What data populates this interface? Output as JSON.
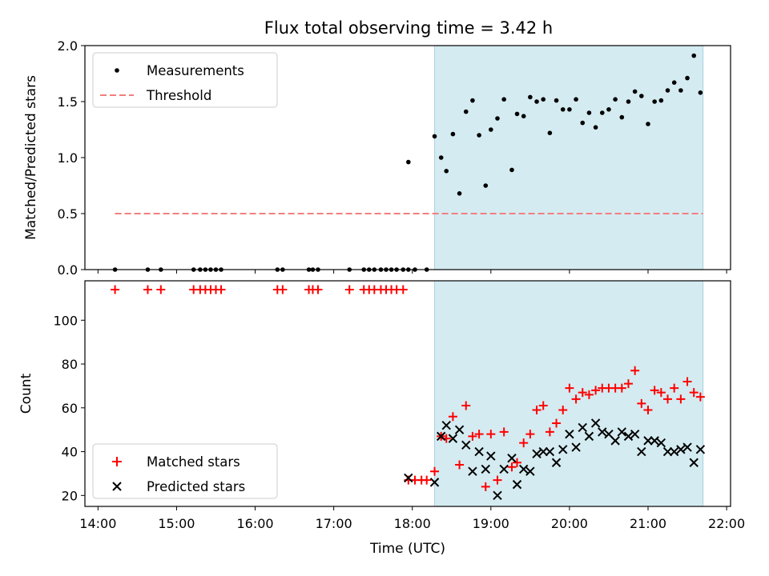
{
  "title": "Flux total observing time = 3.42 h",
  "chart_data": [
    {
      "type": "scatter",
      "ylabel": "Matched/Predicted stars",
      "ylim": [
        0,
        2.0
      ],
      "yticks": [
        "0.0",
        "0.5",
        "1.0",
        "1.5",
        "2.0"
      ],
      "xlim": [
        "13:50",
        "22:03"
      ],
      "legend_position": "top-left",
      "grid": false,
      "observing_window": [
        "18:17",
        "21:42"
      ],
      "observing_window_color": "#d4ebf1",
      "threshold": {
        "name": "Threshold",
        "value": 0.5,
        "from": "14:13",
        "to": "21:42",
        "color": "#f27f7f",
        "style": "dashed"
      },
      "series": [
        {
          "name": "Measurements",
          "marker": "dot",
          "color": "#000000",
          "points": [
            [
              "14:13",
              0
            ],
            [
              "14:38",
              0
            ],
            [
              "14:48",
              0
            ],
            [
              "15:13",
              0
            ],
            [
              "15:18",
              0
            ],
            [
              "15:22",
              0
            ],
            [
              "15:26",
              0
            ],
            [
              "15:30",
              0
            ],
            [
              "15:34",
              0
            ],
            [
              "16:17",
              0
            ],
            [
              "16:21",
              0
            ],
            [
              "16:41",
              0
            ],
            [
              "16:44",
              0
            ],
            [
              "16:48",
              0
            ],
            [
              "17:12",
              0
            ],
            [
              "17:23",
              0
            ],
            [
              "17:27",
              0
            ],
            [
              "17:31",
              0
            ],
            [
              "17:36",
              0
            ],
            [
              "17:40",
              0
            ],
            [
              "17:44",
              0
            ],
            [
              "17:48",
              0
            ],
            [
              "17:53",
              0
            ],
            [
              "17:57",
              0
            ],
            [
              "18:02",
              0
            ],
            [
              "18:11",
              0
            ],
            [
              "17:57",
              0.96
            ],
            [
              "18:17",
              1.19
            ],
            [
              "18:22",
              1.0
            ],
            [
              "18:26",
              0.88
            ],
            [
              "18:31",
              1.21
            ],
            [
              "18:36",
              0.68
            ],
            [
              "18:41",
              1.41
            ],
            [
              "18:46",
              1.51
            ],
            [
              "18:51",
              1.2
            ],
            [
              "18:56",
              0.75
            ],
            [
              "19:00",
              1.25
            ],
            [
              "19:05",
              1.35
            ],
            [
              "19:10",
              1.52
            ],
            [
              "19:16",
              0.89
            ],
            [
              "19:20",
              1.39
            ],
            [
              "19:25",
              1.37
            ],
            [
              "19:30",
              1.54
            ],
            [
              "19:35",
              1.5
            ],
            [
              "19:40",
              1.52
            ],
            [
              "19:45",
              1.22
            ],
            [
              "19:50",
              1.51
            ],
            [
              "19:55",
              1.43
            ],
            [
              "20:00",
              1.43
            ],
            [
              "20:05",
              1.52
            ],
            [
              "20:10",
              1.31
            ],
            [
              "20:15",
              1.4
            ],
            [
              "20:20",
              1.27
            ],
            [
              "20:25",
              1.4
            ],
            [
              "20:30",
              1.43
            ],
            [
              "20:35",
              1.52
            ],
            [
              "20:40",
              1.36
            ],
            [
              "20:45",
              1.5
            ],
            [
              "20:50",
              1.59
            ],
            [
              "20:55",
              1.55
            ],
            [
              "21:00",
              1.3
            ],
            [
              "21:05",
              1.5
            ],
            [
              "21:10",
              1.51
            ],
            [
              "21:15",
              1.6
            ],
            [
              "21:20",
              1.67
            ],
            [
              "21:25",
              1.6
            ],
            [
              "21:30",
              1.71
            ],
            [
              "21:35",
              1.91
            ],
            [
              "21:40",
              1.58
            ]
          ]
        }
      ]
    },
    {
      "type": "scatter",
      "xlabel": "Time (UTC)",
      "ylabel": "Count",
      "ylim": [
        15,
        118
      ],
      "yticks": [
        "20",
        "40",
        "60",
        "80",
        "100"
      ],
      "xlim": [
        "13:50",
        "22:03"
      ],
      "xticks": [
        "14:00",
        "15:00",
        "16:00",
        "17:00",
        "18:00",
        "19:00",
        "20:00",
        "21:00",
        "22:00"
      ],
      "legend_position": "bottom-left",
      "grid": false,
      "observing_window": [
        "18:17",
        "21:42"
      ],
      "observing_window_color": "#d4ebf1",
      "series": [
        {
          "name": "Matched stars",
          "marker": "plus",
          "color": "#ff0000",
          "points": [
            [
              "14:13",
              114
            ],
            [
              "14:38",
              114
            ],
            [
              "14:48",
              114
            ],
            [
              "15:13",
              114
            ],
            [
              "15:18",
              114
            ],
            [
              "15:22",
              114
            ],
            [
              "15:26",
              114
            ],
            [
              "15:30",
              114
            ],
            [
              "15:34",
              114
            ],
            [
              "16:17",
              114
            ],
            [
              "16:21",
              114
            ],
            [
              "16:41",
              114
            ],
            [
              "16:44",
              114
            ],
            [
              "16:48",
              114
            ],
            [
              "17:12",
              114
            ],
            [
              "17:23",
              114
            ],
            [
              "17:27",
              114
            ],
            [
              "17:31",
              114
            ],
            [
              "17:36",
              114
            ],
            [
              "17:40",
              114
            ],
            [
              "17:44",
              114
            ],
            [
              "17:48",
              114
            ],
            [
              "17:53",
              114
            ],
            [
              "17:57",
              27
            ],
            [
              "18:02",
              27
            ],
            [
              "18:07",
              27
            ],
            [
              "18:11",
              27
            ],
            [
              "18:17",
              31
            ],
            [
              "18:22",
              47
            ],
            [
              "18:26",
              46
            ],
            [
              "18:31",
              56
            ],
            [
              "18:36",
              34
            ],
            [
              "18:41",
              61
            ],
            [
              "18:46",
              47
            ],
            [
              "18:51",
              48
            ],
            [
              "18:56",
              24
            ],
            [
              "19:00",
              48
            ],
            [
              "19:05",
              27
            ],
            [
              "19:10",
              49
            ],
            [
              "19:16",
              33
            ],
            [
              "19:20",
              35
            ],
            [
              "19:25",
              44
            ],
            [
              "19:30",
              48
            ],
            [
              "19:35",
              59
            ],
            [
              "19:40",
              61
            ],
            [
              "19:45",
              49
            ],
            [
              "19:50",
              53
            ],
            [
              "19:55",
              59
            ],
            [
              "20:00",
              69
            ],
            [
              "20:05",
              64
            ],
            [
              "20:10",
              67
            ],
            [
              "20:15",
              66
            ],
            [
              "20:20",
              68
            ],
            [
              "20:25",
              69
            ],
            [
              "20:30",
              69
            ],
            [
              "20:35",
              69
            ],
            [
              "20:40",
              69
            ],
            [
              "20:45",
              71
            ],
            [
              "20:50",
              77
            ],
            [
              "20:55",
              62
            ],
            [
              "21:00",
              59
            ],
            [
              "21:05",
              68
            ],
            [
              "21:10",
              67
            ],
            [
              "21:15",
              64
            ],
            [
              "21:20",
              69
            ],
            [
              "21:25",
              64
            ],
            [
              "21:30",
              72
            ],
            [
              "21:35",
              67
            ],
            [
              "21:40",
              65
            ]
          ]
        },
        {
          "name": "Predicted stars",
          "marker": "x",
          "color": "#000000",
          "points": [
            [
              "17:57",
              28
            ],
            [
              "18:17",
              26
            ],
            [
              "18:22",
              47
            ],
            [
              "18:26",
              52
            ],
            [
              "18:31",
              46
            ],
            [
              "18:36",
              50
            ],
            [
              "18:41",
              43
            ],
            [
              "18:46",
              31
            ],
            [
              "18:51",
              40
            ],
            [
              "18:56",
              32
            ],
            [
              "19:00",
              38
            ],
            [
              "19:05",
              20
            ],
            [
              "19:10",
              32
            ],
            [
              "19:16",
              37
            ],
            [
              "19:20",
              25
            ],
            [
              "19:25",
              32
            ],
            [
              "19:30",
              31
            ],
            [
              "19:35",
              39
            ],
            [
              "19:40",
              40
            ],
            [
              "19:45",
              40
            ],
            [
              "19:50",
              35
            ],
            [
              "19:55",
              41
            ],
            [
              "20:00",
              48
            ],
            [
              "20:05",
              42
            ],
            [
              "20:10",
              51
            ],
            [
              "20:15",
              47
            ],
            [
              "20:20",
              53
            ],
            [
              "20:25",
              49
            ],
            [
              "20:30",
              48
            ],
            [
              "20:35",
              45
            ],
            [
              "20:40",
              49
            ],
            [
              "20:45",
              47
            ],
            [
              "20:50",
              48
            ],
            [
              "20:55",
              40
            ],
            [
              "21:00",
              45
            ],
            [
              "21:05",
              45
            ],
            [
              "21:10",
              44
            ],
            [
              "21:15",
              40
            ],
            [
              "21:20",
              40
            ],
            [
              "21:25",
              41
            ],
            [
              "21:30",
              42
            ],
            [
              "21:35",
              35
            ],
            [
              "21:40",
              41
            ]
          ]
        }
      ]
    }
  ]
}
